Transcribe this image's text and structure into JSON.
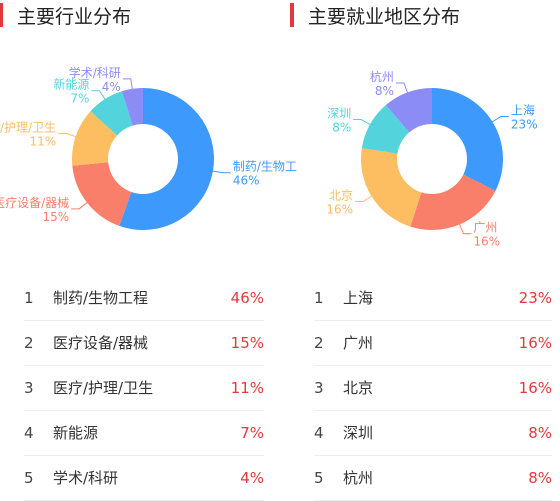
{
  "industry": {
    "header": "主要行业分布",
    "chart_data": {
      "type": "pie",
      "donut": true,
      "series": [
        {
          "label": "制药/生物工",
          "pct_label": "46%",
          "value": 46,
          "color": "#3d9afc"
        },
        {
          "label": "医疗设备/器械",
          "pct_label": "15%",
          "value": 15,
          "color": "#fa7f6b"
        },
        {
          "label": "医疗/护理/卫生",
          "pct_label": "11%",
          "value": 11,
          "color": "#fdbd61"
        },
        {
          "label": "新能源",
          "pct_label": "7%",
          "value": 7,
          "color": "#53d4dc"
        },
        {
          "label": "学术/科研",
          "pct_label": "4%",
          "value": 4,
          "color": "#8c8cf7"
        }
      ]
    },
    "list": [
      {
        "rank": "1",
        "name": "制药/生物工程",
        "pct": "46%"
      },
      {
        "rank": "2",
        "name": "医疗设备/器械",
        "pct": "15%"
      },
      {
        "rank": "3",
        "name": "医疗/护理/卫生",
        "pct": "11%"
      },
      {
        "rank": "4",
        "name": "新能源",
        "pct": "7%"
      },
      {
        "rank": "5",
        "name": "学术/科研",
        "pct": "4%"
      }
    ]
  },
  "region": {
    "header": "主要就业地区分布",
    "chart_data": {
      "type": "pie",
      "donut": true,
      "series": [
        {
          "label": "上海",
          "pct_label": "23%",
          "value": 23,
          "color": "#3d9afc"
        },
        {
          "label": "广州",
          "pct_label": "16%",
          "value": 16,
          "color": "#fa7f6b"
        },
        {
          "label": "北京",
          "pct_label": "16%",
          "value": 16,
          "color": "#fdbd61"
        },
        {
          "label": "深圳",
          "pct_label": "8%",
          "value": 8,
          "color": "#53d4dc"
        },
        {
          "label": "杭州",
          "pct_label": "8%",
          "value": 8,
          "color": "#8c8cf7"
        }
      ]
    },
    "list": [
      {
        "rank": "1",
        "name": "上海",
        "pct": "23%"
      },
      {
        "rank": "2",
        "name": "广州",
        "pct": "16%"
      },
      {
        "rank": "3",
        "name": "北京",
        "pct": "16%"
      },
      {
        "rank": "4",
        "name": "深圳",
        "pct": "8%"
      },
      {
        "rank": "5",
        "name": "杭州",
        "pct": "8%"
      }
    ]
  }
}
